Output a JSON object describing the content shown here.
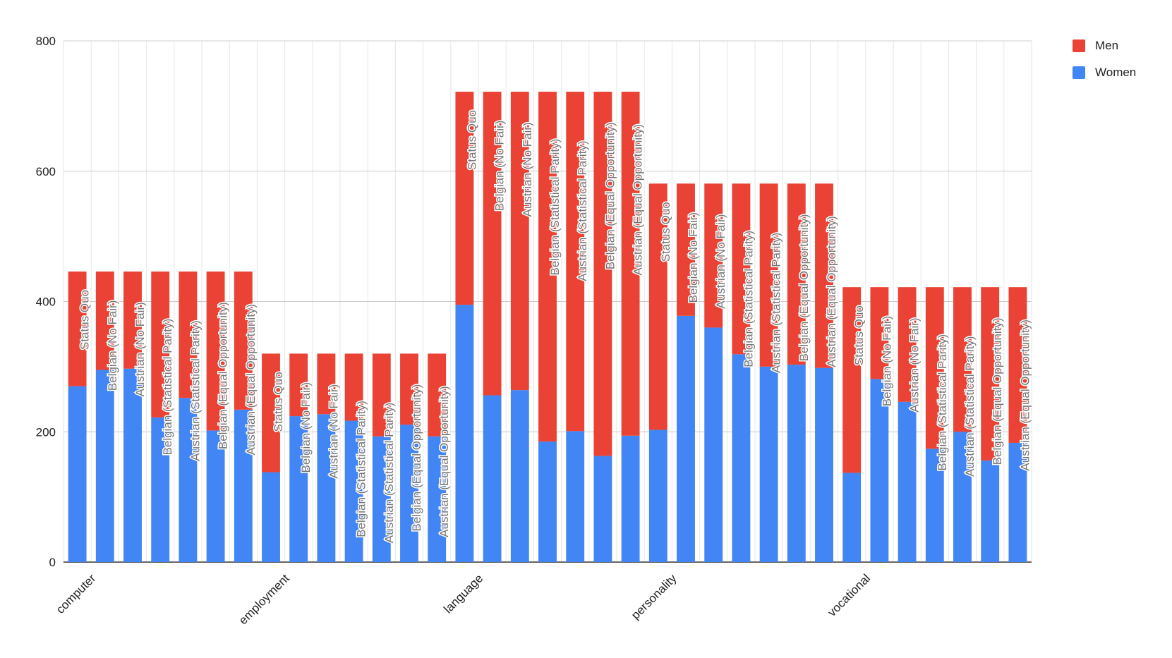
{
  "chart_data": {
    "type": "bar",
    "stacked": true,
    "title": "",
    "xlabel": "",
    "ylabel": "",
    "ylim": [
      0,
      800
    ],
    "yticks": [
      0,
      200,
      400,
      600,
      800
    ],
    "grid": true,
    "legend_position": "top-right",
    "group_labels": [
      "computer",
      "employment",
      "language",
      "personality",
      "vocational"
    ],
    "bar_labels": [
      "Status Quo",
      "Belgian (No Fair)",
      "Austrian (No Fair)",
      "Belgian (Statistical Parity)",
      "Austrian (Statistical Parity)",
      "Belgian (Equal Opportunity)",
      "Austrian (Equal Opportunity)"
    ],
    "colors": {
      "Women": "#4285f4",
      "Men": "#ea4335"
    },
    "series": [
      {
        "name": "Women",
        "values": [
          270,
          295,
          297,
          222,
          252,
          202,
          234,
          138,
          224,
          227,
          217,
          193,
          211,
          193,
          395,
          256,
          264,
          185,
          201,
          163,
          194,
          203,
          378,
          360,
          319,
          300,
          303,
          298,
          137,
          281,
          246,
          174,
          200,
          156,
          183
        ]
      },
      {
        "name": "Men",
        "values": [
          176,
          151,
          149,
          224,
          194,
          244,
          212,
          182,
          96,
          93,
          103,
          127,
          109,
          127,
          327,
          466,
          458,
          537,
          521,
          559,
          528,
          378,
          203,
          221,
          262,
          281,
          278,
          283,
          285,
          141,
          176,
          248,
          222,
          266,
          239
        ]
      }
    ],
    "legend_order": [
      "Men",
      "Women"
    ]
  }
}
